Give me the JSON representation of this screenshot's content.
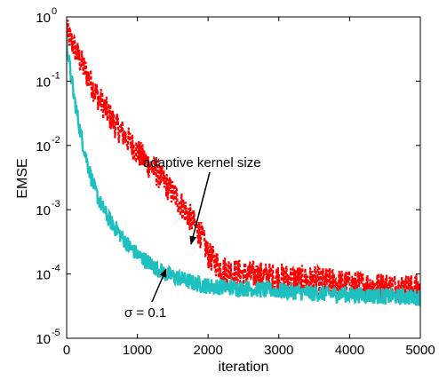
{
  "chart_data": {
    "type": "line",
    "title": "",
    "xlabel": "iteration",
    "ylabel": "EMSE",
    "xlim": [
      0,
      5000
    ],
    "ylim": [
      1e-05,
      1
    ],
    "yscale": "log",
    "grid": false,
    "x_ticks": [
      "0",
      "1000",
      "2000",
      "3000",
      "4000",
      "5000"
    ],
    "y_ticks": [
      {
        "base": "10",
        "exp": "0"
      },
      {
        "base": "10",
        "exp": "-1"
      },
      {
        "base": "10",
        "exp": "-2"
      },
      {
        "base": "10",
        "exp": "-3"
      },
      {
        "base": "10",
        "exp": "-4"
      },
      {
        "base": "10",
        "exp": "-5"
      }
    ],
    "series": [
      {
        "name": "adaptive kernel size",
        "color": "#ff0000",
        "style": "dashed",
        "x": [
          0,
          100,
          200,
          300,
          400,
          500,
          600,
          700,
          800,
          900,
          1000,
          1100,
          1200,
          1300,
          1400,
          1500,
          1600,
          1700,
          1800,
          1900,
          2000,
          2200,
          2500,
          3000,
          3500,
          4000,
          4500,
          5000
        ],
        "y": [
          0.6,
          0.35,
          0.2,
          0.12,
          0.07,
          0.045,
          0.03,
          0.02,
          0.015,
          0.011,
          0.008,
          0.006,
          0.0045,
          0.0035,
          0.0025,
          0.0018,
          0.0013,
          0.0009,
          0.0006,
          0.0004,
          0.0002,
          0.00012,
          0.0001,
          9e-05,
          8e-05,
          7e-05,
          6.5e-05,
          6e-05
        ]
      },
      {
        "name": "σ = 0.1",
        "color": "#1ebfbf",
        "style": "solid",
        "x": [
          0,
          50,
          100,
          200,
          300,
          400,
          500,
          600,
          700,
          800,
          900,
          1000,
          1200,
          1400,
          1600,
          1800,
          2000,
          2500,
          3000,
          3500,
          4000,
          4500,
          5000
        ],
        "y": [
          0.4,
          0.15,
          0.06,
          0.015,
          0.005,
          0.002,
          0.0011,
          0.0007,
          0.0005,
          0.00035,
          0.00026,
          0.0002,
          0.00014,
          0.0001,
          8.5e-05,
          7.2e-05,
          6.5e-05,
          6e-05,
          5.5e-05,
          5e-05,
          4.8e-05,
          4.5e-05,
          4.3e-05
        ]
      }
    ],
    "annotations": [
      {
        "text": "adaptive kernel size",
        "target": {
          "x": 1750,
          "y": 0.00015
        }
      },
      {
        "text": "σ = 0.1",
        "target": {
          "x": 1350,
          "y": 0.0001
        }
      }
    ]
  }
}
